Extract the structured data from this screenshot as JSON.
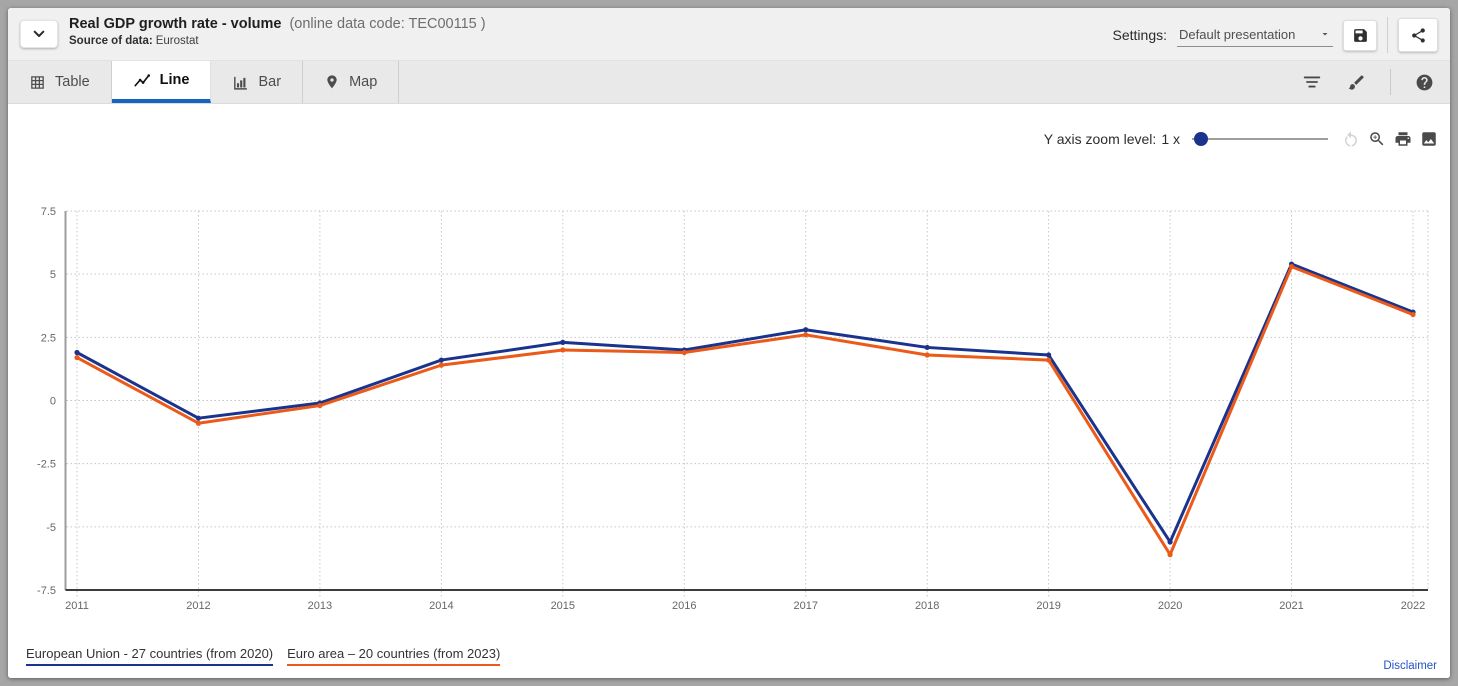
{
  "header": {
    "title": "Real GDP growth rate - volume",
    "code": "(online data code: TEC00115 )",
    "source_label": "Source of data:",
    "source_value": "Eurostat",
    "settings_label": "Settings:",
    "settings_value": "Default presentation",
    "collapse_icon": "chevron-down-icon",
    "save_icon": "floppy-icon",
    "share_icon": "share-icon"
  },
  "tabs": [
    {
      "label": "Table",
      "icon": "table-icon",
      "active": false
    },
    {
      "label": "Line",
      "icon": "line-chart-icon",
      "active": true
    },
    {
      "label": "Bar",
      "icon": "bar-chart-icon",
      "active": false
    },
    {
      "label": "Map",
      "icon": "map-pin-icon",
      "active": false
    }
  ],
  "toolbar_icons": [
    "filter-icon",
    "paintbrush-icon",
    "help-icon"
  ],
  "zoom_control": {
    "label": "Y axis zoom level:",
    "value": "1 x",
    "icons": [
      "reset-icon",
      "zoom-in-icon",
      "print-icon",
      "image-icon"
    ]
  },
  "chart_data": {
    "type": "line",
    "x": [
      2011,
      2012,
      2013,
      2014,
      2015,
      2016,
      2017,
      2018,
      2019,
      2020,
      2021,
      2022
    ],
    "series": [
      {
        "name": "European Union - 27 countries (from 2020)",
        "color": "#1a338c",
        "values": [
          1.9,
          -0.7,
          -0.1,
          1.6,
          2.3,
          2.0,
          2.8,
          2.1,
          1.8,
          -5.6,
          5.4,
          3.5
        ]
      },
      {
        "name": "Euro area – 20 countries (from 2023)",
        "color": "#eb5a19",
        "values": [
          1.7,
          -0.9,
          -0.2,
          1.4,
          2.0,
          1.9,
          2.6,
          1.8,
          1.6,
          -6.1,
          5.3,
          3.4
        ]
      }
    ],
    "ylim": [
      -7.5,
      7.5
    ],
    "yticks": [
      7.5,
      5,
      2.5,
      0,
      -2.5,
      -5,
      -7.5
    ],
    "grid": true,
    "legend_position": "bottom"
  },
  "footer": {
    "disclaimer": "Disclaimer"
  },
  "colors": {
    "accent_tab": "#1565c0",
    "eu_line": "#1a338c",
    "euro_area_line": "#eb5a19",
    "link": "#2453c7",
    "slider_knob": "#1a338c"
  }
}
